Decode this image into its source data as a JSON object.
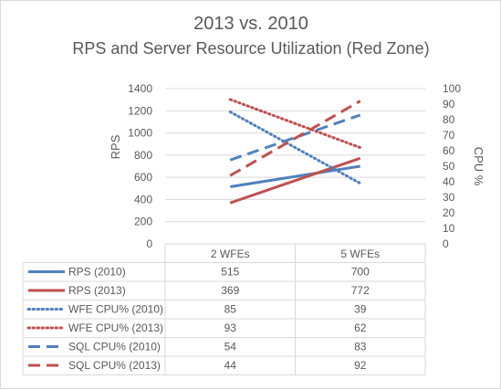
{
  "chart_data": {
    "type": "line",
    "title": "2013 vs. 2010",
    "subtitle": "RPS and Server Resource Utilization (Red Zone)",
    "categories": [
      "2 WFEs",
      "5 WFEs"
    ],
    "ylabel": "RPS",
    "y2label": "CPU %",
    "ylim": [
      0,
      1400
    ],
    "y2lim": [
      0,
      100
    ],
    "yticks": [
      "0",
      "200",
      "400",
      "600",
      "800",
      "1000",
      "1200",
      "1400"
    ],
    "y2ticks": [
      "0",
      "10",
      "20",
      "30",
      "40",
      "50",
      "60",
      "70",
      "80",
      "90",
      "100"
    ],
    "grid": true,
    "legend": "data-table",
    "series": [
      {
        "name": "RPS (2010)",
        "axis": "left",
        "values": [
          515,
          700
        ],
        "color": "#4f81bd",
        "style": "solid"
      },
      {
        "name": "RPS (2013)",
        "axis": "left",
        "values": [
          369,
          772
        ],
        "color": "#c0504d",
        "style": "solid"
      },
      {
        "name": "WFE CPU% (2010)",
        "axis": "right",
        "values": [
          85,
          39
        ],
        "color": "#4f81bd",
        "style": "dotted"
      },
      {
        "name": "WFE CPU% (2013)",
        "axis": "right",
        "values": [
          93,
          62
        ],
        "color": "#c0504d",
        "style": "dotted"
      },
      {
        "name": "SQL CPU% (2010)",
        "axis": "right",
        "values": [
          54,
          83
        ],
        "color": "#4f81bd",
        "style": "dashed"
      },
      {
        "name": "SQL CPU% (2013)",
        "axis": "right",
        "values": [
          44,
          92
        ],
        "color": "#c0504d",
        "style": "dashed"
      }
    ]
  }
}
